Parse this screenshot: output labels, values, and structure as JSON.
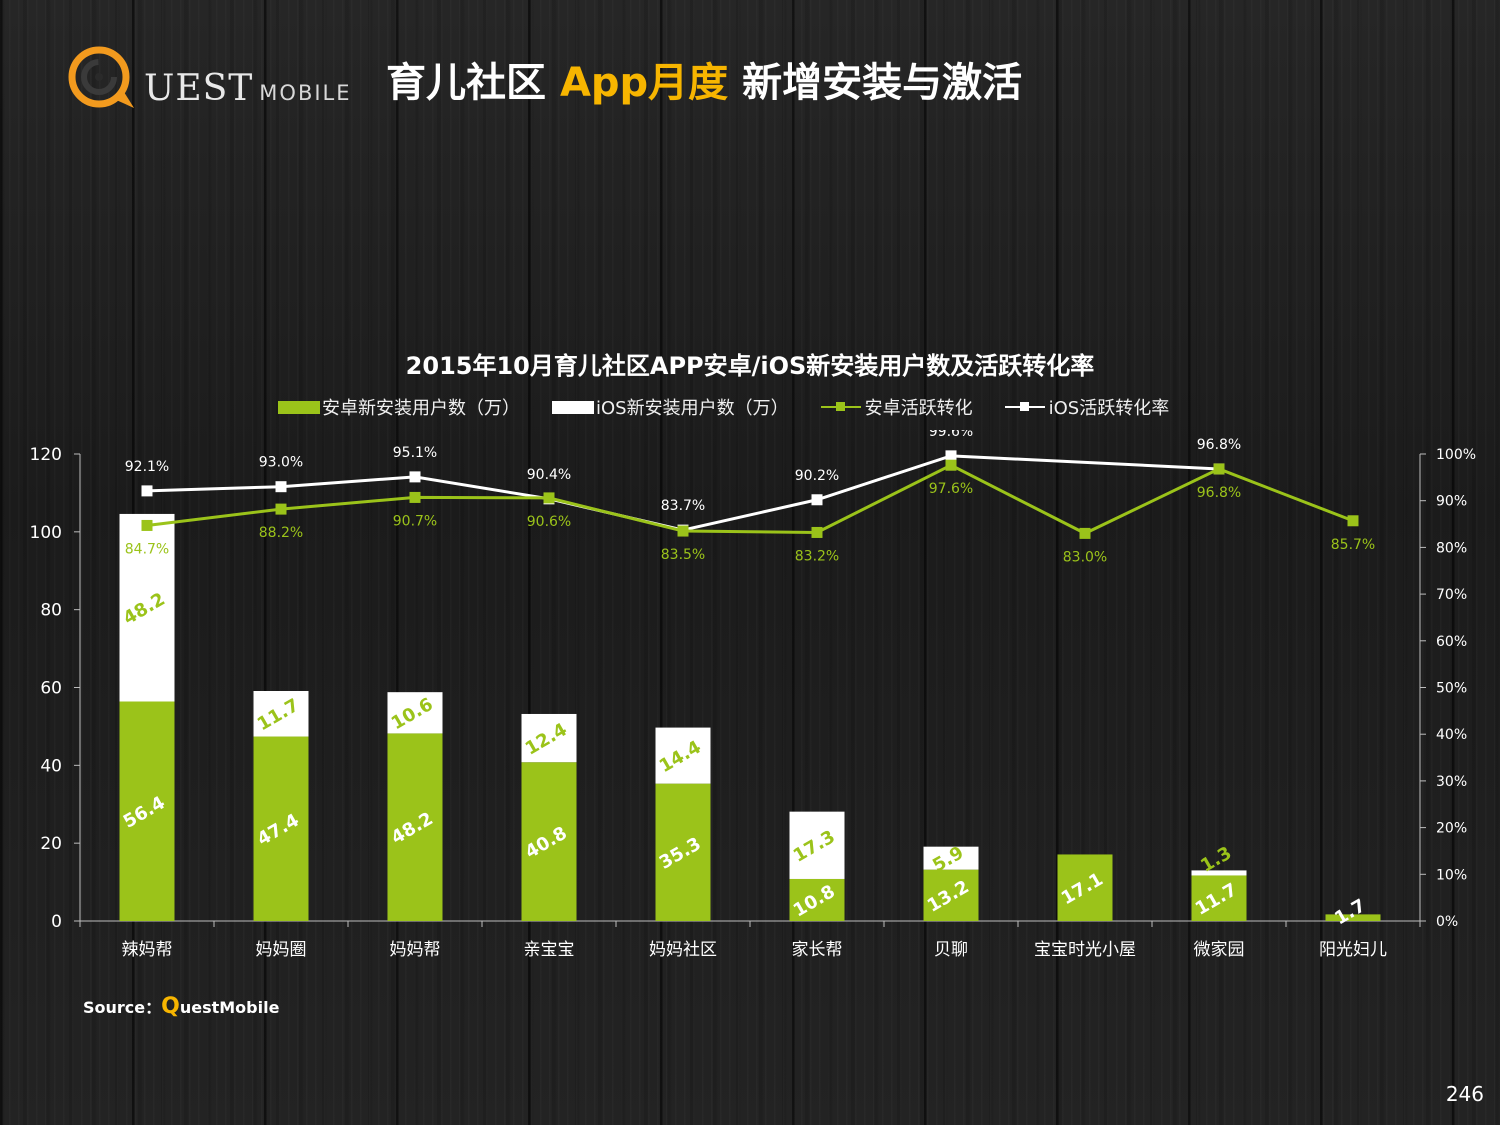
{
  "header": {
    "logo_text": "UEST",
    "logo_sub": "MOBILE",
    "title_part1": "育儿社区",
    "title_part2": "App月度",
    "title_part3": "新增安装与激活"
  },
  "colors": {
    "android": "#9bc31a",
    "ios": "#ffffff",
    "accent": "#f7b500",
    "logo_orange": "#f29a1e"
  },
  "chart_data": {
    "type": "bar",
    "stacked": true,
    "title": "2015年10月育儿社区APP安卓/iOS新安装用户数及活跃转化率",
    "legend_position": "top",
    "categories": [
      "辣妈帮",
      "妈妈圈",
      "妈妈帮",
      "亲宝宝",
      "妈妈社区",
      "家长帮",
      "贝聊",
      "宝宝时光小屋",
      "微家园",
      "阳光妇儿"
    ],
    "y_left": {
      "min": 0,
      "max": 120,
      "ticks": [
        0,
        20,
        40,
        60,
        80,
        100,
        120
      ]
    },
    "y_right": {
      "min": 0,
      "max": 1,
      "ticks": [
        "0%",
        "10%",
        "20%",
        "30%",
        "40%",
        "50%",
        "60%",
        "70%",
        "80%",
        "90%",
        "100%"
      ]
    },
    "bar_series": [
      {
        "name": "安卓新安装用户数（万）",
        "color": "#9bc31a",
        "values": [
          56.4,
          47.4,
          48.2,
          40.8,
          35.3,
          10.8,
          13.2,
          17.1,
          11.7,
          1.7
        ],
        "labels": [
          "56.4",
          "47.4",
          "48.2",
          "40.8",
          "35.3",
          "10.8",
          "13.2",
          "17.1",
          "11.7",
          "1.7"
        ]
      },
      {
        "name": "iOS新安装用户数（万）",
        "color": "#ffffff",
        "values": [
          48.2,
          11.7,
          10.6,
          12.4,
          14.4,
          17.3,
          5.9,
          null,
          1.3,
          null
        ],
        "labels": [
          "48.2",
          "11.7",
          "10.6",
          "12.4",
          "14.4",
          "17.3",
          "5.9",
          "",
          "1.3",
          ""
        ]
      }
    ],
    "line_series": [
      {
        "name": "安卓活跃转化",
        "color": "#9bc31a",
        "values": [
          84.7,
          88.2,
          90.7,
          90.6,
          83.5,
          83.2,
          97.6,
          83.0,
          96.8,
          85.7
        ],
        "labels": [
          "84.7%",
          "88.2%",
          "90.7%",
          "90.6%",
          "83.5%",
          "83.2%",
          "97.6%",
          "83.0%",
          "96.8%",
          "85.7%"
        ]
      },
      {
        "name": "iOS活跃转化率",
        "color": "#ffffff",
        "values": [
          92.1,
          93.0,
          95.1,
          90.4,
          83.7,
          90.2,
          99.6,
          null,
          96.8,
          null
        ],
        "labels": [
          "92.1%",
          "93.0%",
          "95.1%",
          "90.4%",
          "83.7%",
          "90.2%",
          "99.6%",
          "",
          "96.8%",
          ""
        ]
      }
    ]
  },
  "footer": {
    "source_prefix": "Source：",
    "source_q": "Q",
    "source_rest": "uestMobile",
    "page_number": "246"
  }
}
